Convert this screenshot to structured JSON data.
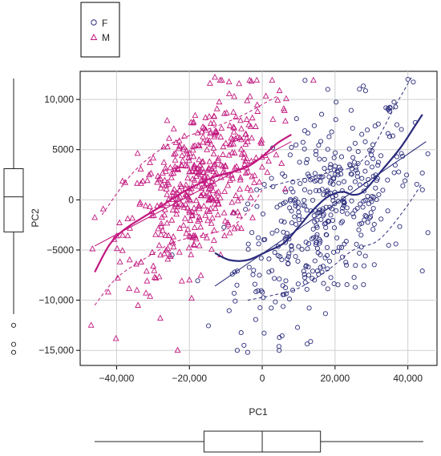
{
  "chart_data": {
    "type": "scatter",
    "title": "",
    "xlabel": "PC1",
    "ylabel": "PC2",
    "xlim": [
      -50000,
      48000
    ],
    "ylim": [
      -16500,
      12800
    ],
    "grid": true,
    "legend": {
      "placement": "top-left, outside",
      "entries": [
        {
          "label": "F",
          "marker": "circle",
          "color": "#2b2c7c"
        },
        {
          "label": "M",
          "marker": "triangle",
          "color": "#c2187f"
        }
      ]
    },
    "x_ticks": [
      {
        "value": -40000,
        "label": "−40,000"
      },
      {
        "value": -20000,
        "label": "−20,000"
      },
      {
        "value": 0,
        "label": "0"
      },
      {
        "value": 20000,
        "label": "20,000"
      },
      {
        "value": 40000,
        "label": "40,000"
      }
    ],
    "y_ticks": [
      {
        "value": 10000,
        "label": "10,000"
      },
      {
        "value": 5000,
        "label": "5000"
      },
      {
        "value": 0,
        "label": "0"
      },
      {
        "value": -5000,
        "label": "−5000"
      },
      {
        "value": -10000,
        "label": "−10,000"
      },
      {
        "value": -15000,
        "label": "−15,000"
      }
    ],
    "series": [
      {
        "name": "F",
        "marker": "circle",
        "color": "#2b2c7c",
        "center": [
          17000,
          -1500
        ],
        "spread": [
          12000,
          4500
        ],
        "slope": 0.22,
        "n": 430,
        "outliers": [
          [
            -5000,
            -14500
          ],
          [
            -4000,
            -15200
          ],
          [
            18000,
            11000
          ],
          [
            40000,
            12000
          ],
          [
            44000,
            1000
          ]
        ],
        "linear_fit": [
          [
            -13000,
            -8600
          ],
          [
            45000,
            5800
          ]
        ],
        "smooth_fit": [
          [
            -13000,
            -5300
          ],
          [
            -9000,
            -6000
          ],
          [
            -4000,
            -6000
          ],
          [
            1000,
            -5200
          ],
          [
            6000,
            -4300
          ],
          [
            10000,
            -2700
          ],
          [
            14000,
            -1000
          ],
          [
            18000,
            300
          ],
          [
            22000,
            800
          ],
          [
            25000,
            500
          ],
          [
            28000,
            900
          ],
          [
            33000,
            3000
          ],
          [
            38000,
            5200
          ],
          [
            42000,
            7400
          ],
          [
            44000,
            8500
          ]
        ],
        "band_upper": [
          [
            -1000,
            1000
          ],
          [
            7000,
            1800
          ],
          [
            14000,
            2300
          ],
          [
            20000,
            2900
          ],
          [
            25000,
            3300
          ],
          [
            30000,
            5000
          ],
          [
            36000,
            9000
          ],
          [
            41000,
            12200
          ]
        ],
        "band_lower": [
          [
            -4000,
            -10000
          ],
          [
            3000,
            -9500
          ],
          [
            10000,
            -8800
          ],
          [
            18000,
            -7000
          ],
          [
            25000,
            -5000
          ],
          [
            32000,
            -4000
          ],
          [
            39000,
            -1000
          ],
          [
            44000,
            1700
          ]
        ]
      },
      {
        "name": "M",
        "marker": "triangle",
        "color": "#c2187f",
        "center": [
          -17500,
          1500
        ],
        "spread": [
          10000,
          3800
        ],
        "slope": 0.25,
        "n": 470,
        "outliers": [
          [
            -47000,
            -12500
          ],
          [
            -28000,
            -11800
          ],
          [
            -20000,
            -8000
          ],
          [
            -13000,
            12200
          ],
          [
            -3000,
            11800
          ]
        ],
        "linear_fit": [
          [
            -46000,
            -4600
          ],
          [
            8000,
            5800
          ]
        ],
        "smooth_fit": [
          [
            -46000,
            -7200
          ],
          [
            -42000,
            -4500
          ],
          [
            -38000,
            -3000
          ],
          [
            -33000,
            -1800
          ],
          [
            -28000,
            -700
          ],
          [
            -23000,
            500
          ],
          [
            -18000,
            1500
          ],
          [
            -13000,
            2300
          ],
          [
            -8000,
            2800
          ],
          [
            -4000,
            3300
          ],
          [
            0,
            4300
          ],
          [
            4000,
            5600
          ],
          [
            8000,
            6500
          ]
        ],
        "band_upper": [
          [
            -44000,
            -1500
          ],
          [
            -36000,
            2500
          ],
          [
            -28000,
            5000
          ],
          [
            -20000,
            6400
          ],
          [
            -12000,
            7400
          ],
          [
            -5000,
            8500
          ],
          [
            0,
            9500
          ],
          [
            4000,
            10300
          ]
        ],
        "band_lower": [
          [
            -46000,
            -10500
          ],
          [
            -40000,
            -7800
          ],
          [
            -32000,
            -5800
          ],
          [
            -24000,
            -4200
          ],
          [
            -16000,
            -3500
          ],
          [
            -9000,
            -2800
          ],
          [
            -4000,
            -1200
          ],
          [
            0,
            1000
          ]
        ]
      }
    ],
    "marginal_boxplots": {
      "x": {
        "min": -46000,
        "q1": -16000,
        "median": 0,
        "q3": 16000,
        "max": 45000
      },
      "y": {
        "min": -11000,
        "q1": -3200,
        "median": 300,
        "q3": 3100,
        "max": 10800,
        "outliers": [
          -12500,
          -14400,
          -15200
        ]
      }
    }
  }
}
